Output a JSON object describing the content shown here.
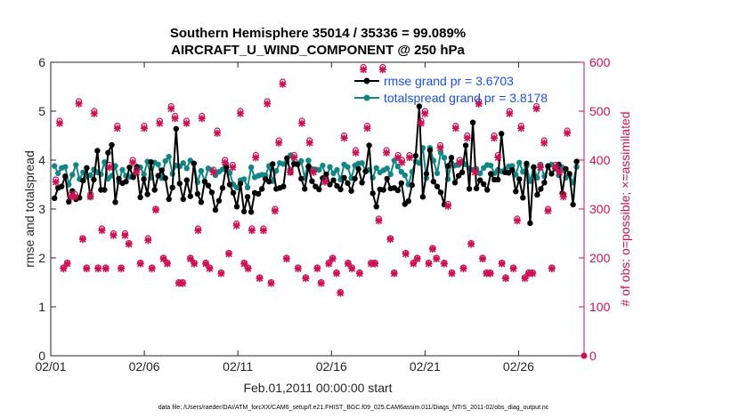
{
  "chart_data": {
    "type": "line",
    "title_line1": "Southern Hemisphere 35014 / 35336 = 99.089%",
    "title_line2": "AIRCRAFT_U_WIND_COMPONENT @ 250 hPa",
    "ylabel_left": "rmse and totalspread",
    "ylabel_right": "# of obs: o=possible; ×=assimilated",
    "xlabel": "Feb.01,2011 00:00:00 start",
    "footer": "data file: /Users/raeder/DAI/ATM_forcXX/CAM6_setup/f.e21.FHIST_BGC.f09_025.CAM6assim.011/Diags_NTrS_2011-02/obs_diag_output.nc",
    "x_range": [
      0,
      28.5
    ],
    "x_tick_values": [
      0,
      5,
      10,
      15,
      20,
      25
    ],
    "x_tick_labels": [
      "02/01",
      "02/06",
      "02/11",
      "02/16",
      "02/21",
      "02/26"
    ],
    "ylim_left": [
      0,
      6
    ],
    "y_left_ticks": [
      0,
      1,
      2,
      3,
      4,
      5,
      6
    ],
    "ylim_right": [
      0,
      600
    ],
    "y_right_ticks": [
      0,
      100,
      200,
      300,
      400,
      500,
      600
    ],
    "colors": {
      "rmse": "#000000",
      "spread": "#138585",
      "obs": "#cc1155",
      "legend_text": "#1a50e0",
      "axis": "#262626"
    },
    "legend": {
      "rmse": "rmse grand pr = 3.6703",
      "spread": "totalspread grand pr = 3.8178"
    },
    "series": [
      {
        "name": "rmse",
        "values": [
          3.22,
          3.43,
          3.46,
          3.67,
          3.15,
          3.37,
          3.2,
          3.23,
          3.58,
          3.84,
          3.25,
          3.6,
          4.19,
          3.39,
          3.39,
          4.15,
          4.31,
          3.14,
          3.62,
          3.53,
          3.56,
          3.85,
          3.65,
          3.86,
          3.24,
          3.61,
          3.3,
          3.96,
          3.39,
          3.68,
          3.79,
          3.63,
          3.2,
          3.44,
          4.64,
          3.52,
          3.2,
          3.59,
          3.26,
          3.93,
          3.31,
          3.14,
          3.56,
          3.48,
          3.34,
          2.98,
          3.17,
          3.43,
          3.86,
          3.5,
          3.33,
          3.05,
          3.52,
          2.95,
          3.25,
          2.94,
          3.33,
          3.31,
          3.41,
          3.61,
          3.56,
          3.92,
          3.41,
          3.43,
          3.46,
          4.04,
          3.75,
          3.92,
          3.91,
          3.62,
          3.41,
          3.87,
          3.57,
          3.46,
          3.4,
          3.63,
          3.71,
          3.5,
          3.59,
          3.47,
          3.4,
          3.64,
          3.53,
          3.37,
          3.62,
          3.82,
          3.54,
          3.77,
          4.3,
          3.32,
          3.05,
          3.4,
          3.39,
          3.62,
          3.42,
          3.43,
          3.38,
          3.53,
          3.1,
          3.16,
          3.49,
          4.09,
          5.1,
          3.25,
          3.72,
          4.2,
          3.56,
          3.46,
          3.34,
          3.09,
          3.88,
          4.05,
          3.54,
          3.68,
          3.75,
          4.3,
          3.41,
          4.77,
          3.42,
          3.59,
          3.51,
          3.39,
          3.72,
          3.6,
          3.6,
          4.54,
          3.75,
          3.74,
          3.8,
          3.36,
          3.61,
          3.23,
          3.93,
          2.71,
          3.85,
          3.29,
          3.41,
          3.54,
          3.88,
          3.72,
          3.83,
          3.91,
          3.32,
          3.82,
          3.72,
          3.09,
          3.97
        ]
      },
      {
        "name": "totalspread",
        "values": [
          3.88,
          3.73,
          3.84,
          3.86,
          3.5,
          3.7,
          3.9,
          3.61,
          3.75,
          3.66,
          3.69,
          3.81,
          3.75,
          3.71,
          3.96,
          3.62,
          3.68,
          3.88,
          3.56,
          3.8,
          3.68,
          3.66,
          3.68,
          3.87,
          3.85,
          3.71,
          3.97,
          3.64,
          3.95,
          3.91,
          3.63,
          3.98,
          4.07,
          3.72,
          3.89,
          3.87,
          3.94,
          3.83,
          3.99,
          3.93,
          3.55,
          3.78,
          3.57,
          3.83,
          3.79,
          3.69,
          3.76,
          3.81,
          3.91,
          3.74,
          3.5,
          3.44,
          3.59,
          3.61,
          3.44,
          3.85,
          3.65,
          3.68,
          3.7,
          3.69,
          3.88,
          3.57,
          3.78,
          3.94,
          3.92,
          3.97,
          4.1,
          3.93,
          3.93,
          3.98,
          3.63,
          3.99,
          3.82,
          3.81,
          3.8,
          3.89,
          3.62,
          3.86,
          3.73,
          3.8,
          3.6,
          3.91,
          3.86,
          3.63,
          3.89,
          3.93,
          3.94,
          3.78,
          3.8,
          3.64,
          3.84,
          3.75,
          3.79,
          3.83,
          3.71,
          3.99,
          3.87,
          3.76,
          3.69,
          3.5,
          3.76,
          3.97,
          3.94,
          4.25,
          3.63,
          4.25,
          3.99,
          3.73,
          4.15,
          4.05,
          3.61,
          3.94,
          3.89,
          3.9,
          3.97,
          3.91,
          3.83,
          3.8,
          3.82,
          3.73,
          3.84,
          3.9,
          3.89,
          3.73,
          3.8,
          3.77,
          3.8,
          3.87,
          3.88,
          3.7,
          3.95,
          3.76,
          3.88,
          3.57,
          3.86,
          3.64,
          3.89,
          3.67,
          3.86,
          3.91,
          3.86,
          3.69,
          3.85,
          3.64,
          3.69,
          3.54,
          3.86
        ]
      },
      {
        "name": "obs_possible",
        "values": [
          360,
          480,
          180,
          190,
          330,
          330,
          520,
          240,
          180,
          330,
          500,
          180,
          260,
          180,
          390,
          250,
          470,
          180,
          250,
          230,
          400,
          380,
          190,
          470,
          240,
          180,
          300,
          480,
          200,
          190,
          510,
          490,
          150,
          150,
          480,
          200,
          190,
          260,
          490,
          190,
          180,
          380,
          460,
          170,
          400,
          210,
          390,
          270,
          500,
          190,
          180,
          260,
          410,
          160,
          260,
          520,
          150,
          300,
          440,
          560,
          200,
          380,
          410,
          180,
          480,
          160,
          440,
          380,
          180,
          150,
          360,
          190,
          200,
          170,
          130,
          450,
          190,
          180,
          420,
          170,
          590,
          470,
          190,
          190,
          280,
          590,
          420,
          240,
          170,
          410,
          400,
          210,
          410,
          190,
          200,
          480,
          500,
          190,
          220,
          200,
          430,
          190,
          310,
          170,
          470,
          400,
          180,
          450,
          230,
          380,
          520,
          200,
          170,
          170,
          450,
          410,
          190,
          160,
          500,
          180,
          280,
          470,
          160,
          170,
          170,
          510,
          390,
          440,
          300,
          180,
          390,
          380,
          330,
          460
        ]
      },
      {
        "name": "obs_assimilated",
        "values": [
          355,
          475,
          178,
          188,
          325,
          325,
          515,
          238,
          178,
          325,
          495,
          178,
          256,
          178,
          385,
          246,
          465,
          178,
          246,
          228,
          395,
          375,
          188,
          465,
          236,
          178,
          298,
          475,
          198,
          188,
          505,
          485,
          148,
          148,
          475,
          198,
          188,
          256,
          485,
          188,
          178,
          375,
          455,
          168,
          395,
          208,
          385,
          266,
          495,
          188,
          178,
          256,
          405,
          158,
          256,
          515,
          148,
          296,
          435,
          555,
          198,
          375,
          405,
          178,
          475,
          158,
          435,
          375,
          178,
          148,
          355,
          188,
          198,
          168,
          128,
          445,
          188,
          178,
          415,
          168,
          585,
          465,
          188,
          188,
          276,
          585,
          415,
          238,
          168,
          405,
          395,
          208,
          405,
          188,
          198,
          475,
          495,
          188,
          218,
          198,
          425,
          188,
          306,
          168,
          465,
          395,
          178,
          445,
          228,
          375,
          515,
          198,
          168,
          168,
          445,
          405,
          188,
          158,
          495,
          178,
          276,
          465,
          158,
          168,
          168,
          505,
          385,
          435,
          296,
          178,
          385,
          375,
          325,
          455
        ]
      }
    ],
    "last_obs_point": {
      "x": 28.5,
      "value": 0
    }
  }
}
